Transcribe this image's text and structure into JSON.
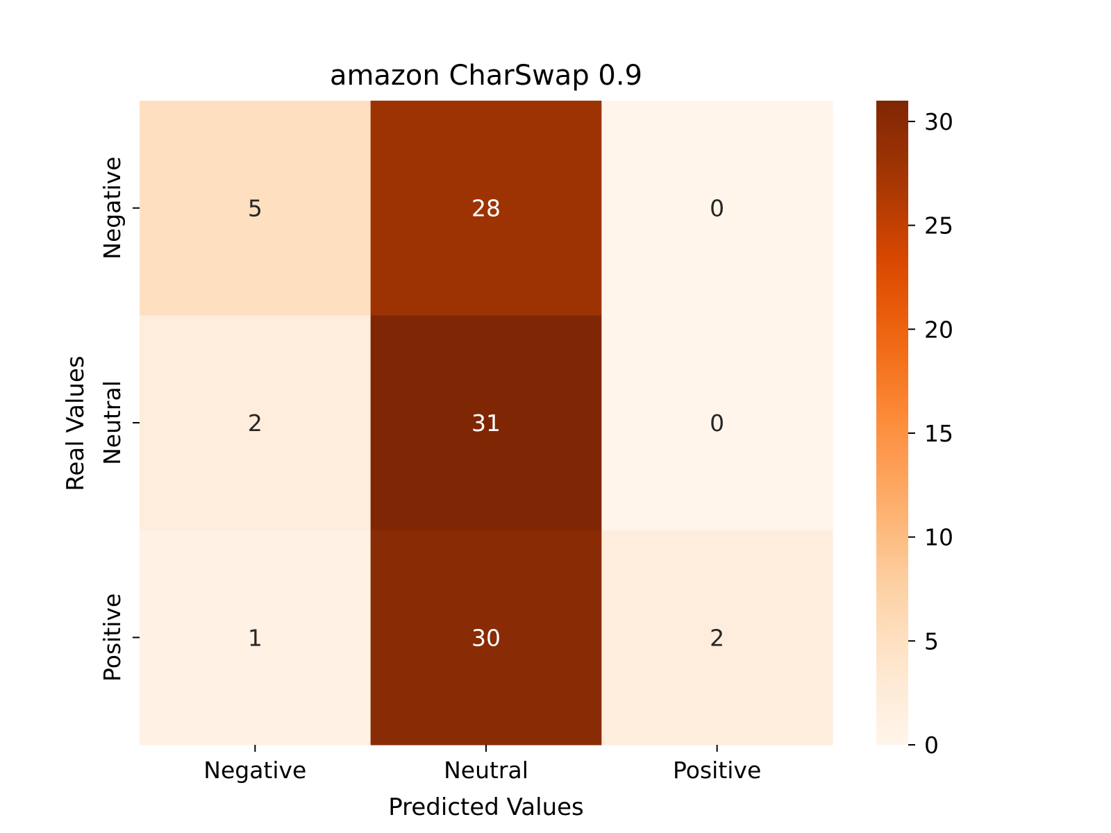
{
  "chart_data": {
    "type": "heatmap",
    "title": "amazon CharSwap 0.9",
    "xlabel": "Predicted Values",
    "ylabel": "Real Values",
    "x_categories": [
      "Negative",
      "Neutral",
      "Positive"
    ],
    "y_categories": [
      "Negative",
      "Neutral",
      "Positive"
    ],
    "values": [
      [
        5,
        28,
        0
      ],
      [
        2,
        31,
        0
      ],
      [
        1,
        30,
        2
      ]
    ],
    "colormap": "Oranges",
    "colorbar": {
      "range": [
        0,
        31
      ],
      "ticks": [
        0,
        5,
        10,
        15,
        20,
        25,
        30
      ]
    },
    "grid": false,
    "legend": "none"
  }
}
